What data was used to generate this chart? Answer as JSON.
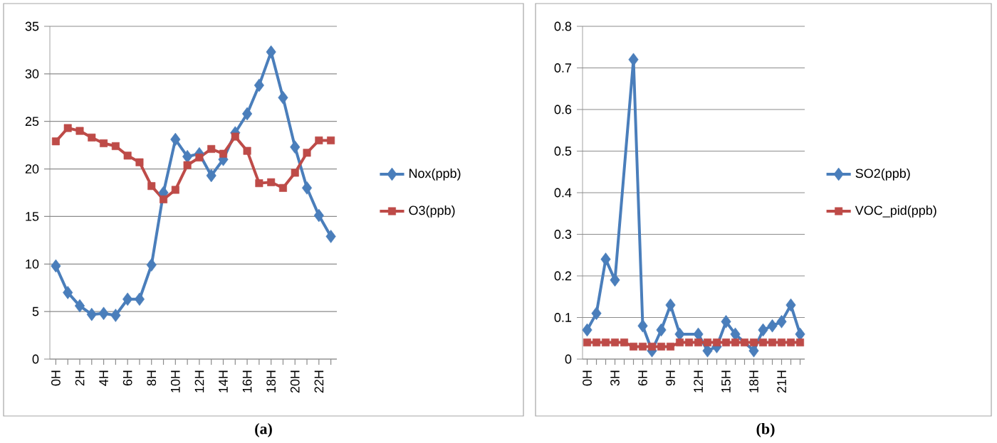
{
  "chart_data": [
    {
      "type": "line",
      "categories": [
        "0H",
        null,
        "2H",
        null,
        "4H",
        null,
        "6H",
        null,
        "8H",
        null,
        "10H",
        null,
        "12H",
        null,
        "14H",
        null,
        "16H",
        null,
        "18H",
        null,
        "20H",
        null,
        "22H",
        null
      ],
      "series": [
        {
          "name": "Nox(ppb)",
          "color": "#4a7ebb",
          "marker": "diamond",
          "values": [
            9.8,
            7.0,
            5.6,
            4.7,
            4.8,
            4.6,
            6.3,
            6.3,
            9.9,
            17.5,
            23.1,
            21.3,
            21.6,
            19.3,
            21.0,
            23.8,
            25.8,
            28.8,
            32.3,
            27.5,
            22.3,
            18.0,
            15.1,
            12.9
          ]
        },
        {
          "name": "O3(ppb)",
          "color": "#be4b48",
          "marker": "square",
          "values": [
            22.9,
            24.3,
            24.0,
            23.3,
            22.7,
            22.4,
            21.4,
            20.7,
            18.2,
            16.8,
            17.8,
            20.4,
            21.2,
            22.1,
            21.6,
            23.4,
            21.9,
            18.5,
            18.6,
            18.0,
            19.6,
            21.7,
            23.0,
            23.0
          ]
        }
      ],
      "ylim": [
        0,
        35
      ],
      "yticks": [
        0,
        5,
        10,
        15,
        20,
        25,
        30,
        35
      ],
      "grid": "y",
      "legend": "right",
      "annotations": [
        "(a)"
      ]
    },
    {
      "type": "line",
      "categories": [
        "0H",
        null,
        null,
        "3H",
        null,
        null,
        "6H",
        null,
        null,
        "9H",
        null,
        null,
        "12H",
        null,
        null,
        "15H",
        null,
        null,
        "18H",
        null,
        null,
        "21H",
        null,
        null
      ],
      "series": [
        {
          "name": "SO2(ppb)",
          "color": "#4a7ebb",
          "marker": "diamond",
          "values": [
            0.07,
            0.11,
            0.24,
            0.19,
            null,
            0.72,
            0.08,
            0.02,
            0.07,
            0.13,
            0.06,
            null,
            0.06,
            0.02,
            0.03,
            0.09,
            0.06,
            null,
            0.02,
            0.07,
            0.08,
            0.09,
            0.13,
            0.06
          ]
        },
        {
          "name": "VOC_pid(ppb)",
          "color": "#be4b48",
          "marker": "square",
          "values": [
            0.04,
            0.04,
            0.04,
            0.04,
            0.04,
            0.03,
            0.03,
            0.03,
            0.03,
            0.03,
            0.04,
            0.04,
            0.04,
            0.04,
            0.04,
            0.04,
            0.04,
            0.04,
            0.04,
            0.04,
            0.04,
            0.04,
            0.04,
            0.04
          ]
        }
      ],
      "ylim": [
        0,
        0.8
      ],
      "yticks": [
        0,
        0.1,
        0.2,
        0.3,
        0.4,
        0.5,
        0.6,
        0.7,
        0.8
      ],
      "grid": "y",
      "legend": "right",
      "annotations": [
        "(b)"
      ]
    }
  ]
}
